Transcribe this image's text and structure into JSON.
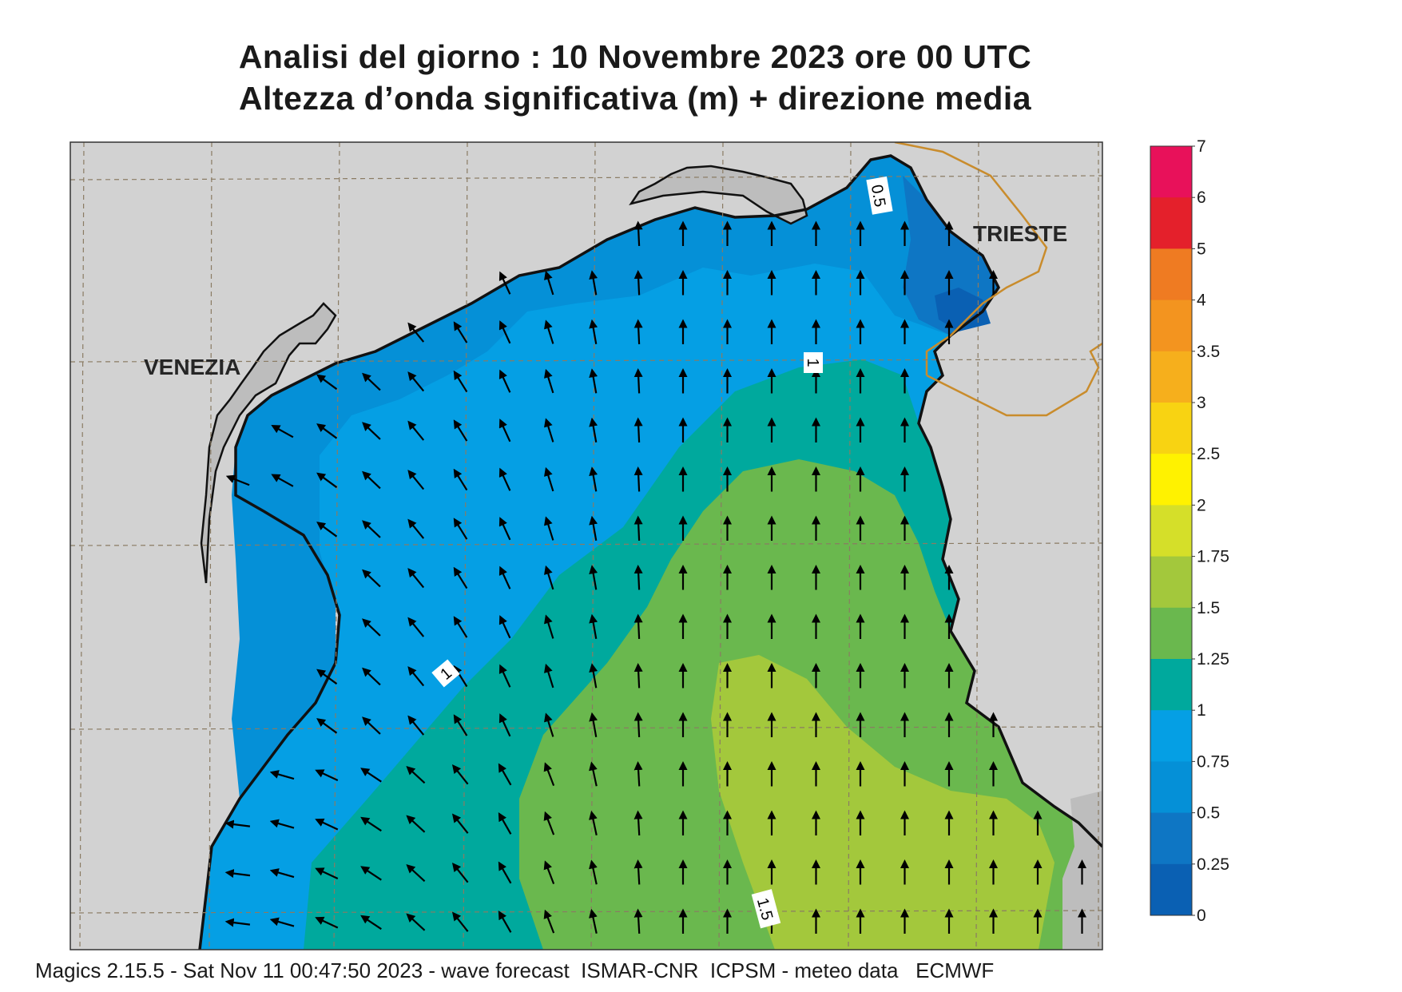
{
  "title": {
    "line1": "Analisi del giorno :  10 Novembre  2023   ore 00 UTC",
    "line2": "Altezza d’onda significativa (m) + direzione media"
  },
  "places": [
    {
      "name": "VENEZIA"
    },
    {
      "name": "TRIESTE"
    }
  ],
  "contour_labels": [
    "0.5",
    "1",
    "1",
    "1.5"
  ],
  "colorbar": {
    "labels": [
      "7",
      "6",
      "5",
      "4",
      "3.5",
      "3",
      "2.5",
      "2",
      "1.75",
      "1.5",
      "1.25",
      "1",
      "0.75",
      "0.5",
      "0.25",
      "0"
    ],
    "colors": [
      "#e8115a",
      "#e4202b",
      "#ef7b22",
      "#f3941f",
      "#f6af1c",
      "#f8d312",
      "#fff200",
      "#d5df29",
      "#a3c83c",
      "#6ab84e",
      "#00a99d",
      "#059fe4",
      "#0590d7",
      "#0e76c4",
      "#0a60b3"
    ]
  },
  "colors": {
    "land": "#d2d2d2",
    "coast_land": "#bdbdbd",
    "border": "#c98c2c",
    "c_0_25": "#0a60b3",
    "c_0_5": "#0e76c4",
    "c_0_75": "#0590d7",
    "c_1": "#059fe4",
    "c_1_25": "#00a99d",
    "c_1_5": "#6ab84e",
    "c_1_75": "#a3c83c"
  },
  "footer": "Magics 2.15.5 - Sat Nov 11 00:47:50 2023 - wave forecast  ISMAR-CNR  ICPSM - meteo data   ECMWF"
}
